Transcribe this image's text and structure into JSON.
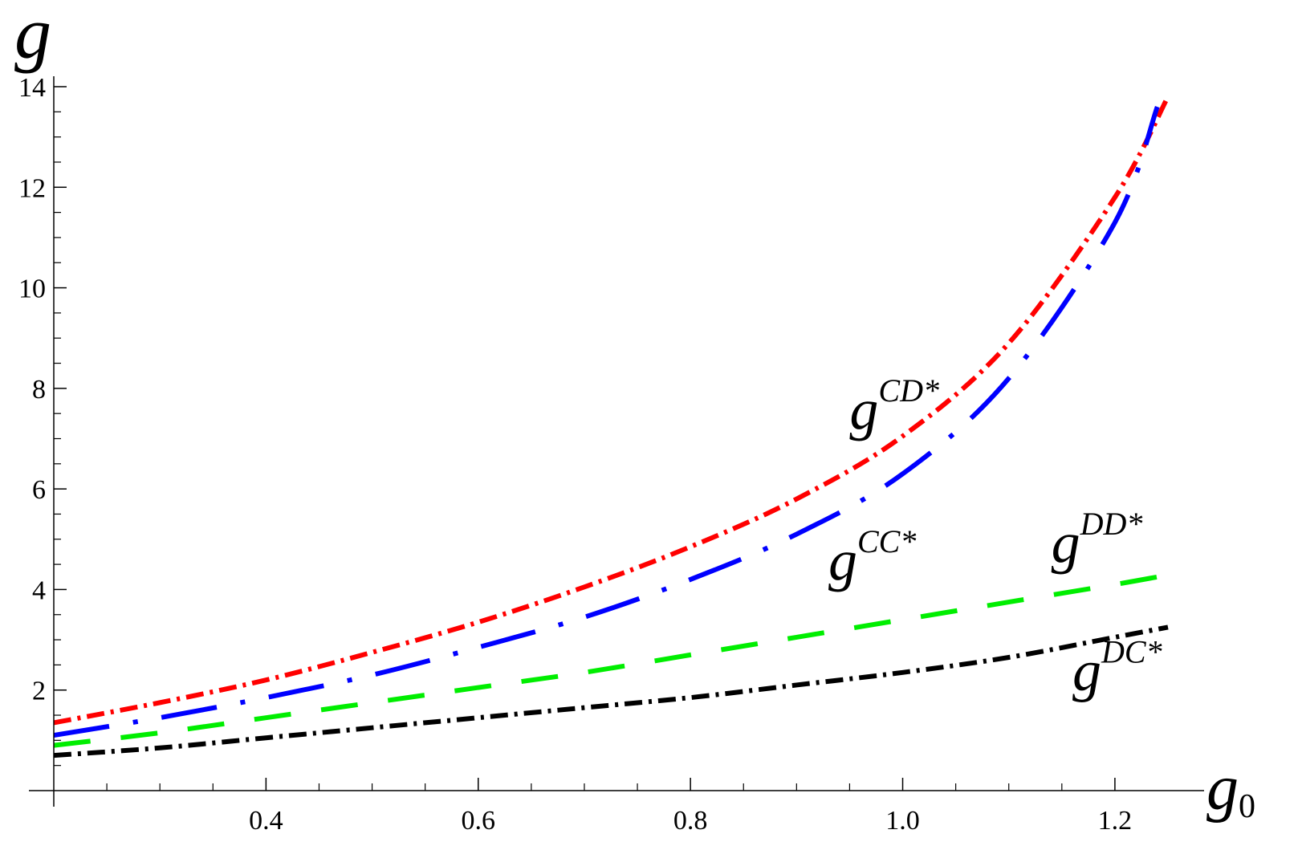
{
  "chart_data": {
    "type": "line",
    "xlabel": "g",
    "xlabel_sub": "0",
    "ylabel": "g",
    "xlim": [
      0.2,
      1.25
    ],
    "ylim": [
      0,
      14
    ],
    "x_ticks": [
      {
        "value": 0.4,
        "label": "0.4"
      },
      {
        "value": 0.6,
        "label": "0.6"
      },
      {
        "value": 0.8,
        "label": "0.8"
      },
      {
        "value": 1.0,
        "label": "1.0"
      },
      {
        "value": 1.2,
        "label": "1.2"
      }
    ],
    "y_ticks": [
      {
        "value": 2,
        "label": "2"
      },
      {
        "value": 4,
        "label": "4"
      },
      {
        "value": 6,
        "label": "6"
      },
      {
        "value": 8,
        "label": "8"
      },
      {
        "value": 10,
        "label": "10"
      },
      {
        "value": 12,
        "label": "12"
      },
      {
        "value": 14,
        "label": "14"
      }
    ],
    "grid": false,
    "series": [
      {
        "name": "g",
        "sup": "CD*",
        "color": "#ff0000",
        "style": "dashdot",
        "label_at": [
          0.95,
          7.2
        ],
        "x": [
          0.2,
          0.3,
          0.4,
          0.5,
          0.6,
          0.7,
          0.8,
          0.9,
          1.0,
          1.1,
          1.2,
          1.25
        ],
        "y": [
          1.35,
          1.75,
          2.2,
          2.75,
          3.35,
          4.05,
          4.85,
          5.8,
          7.05,
          8.9,
          11.8,
          13.8
        ]
      },
      {
        "name": "g",
        "sup": "CC*",
        "color": "#0000ff",
        "style": "longdashdot",
        "label_at": [
          0.93,
          4.2
        ],
        "x": [
          0.2,
          0.3,
          0.4,
          0.5,
          0.6,
          0.7,
          0.8,
          0.9,
          1.0,
          1.1,
          1.2,
          1.24
        ],
        "y": [
          1.1,
          1.45,
          1.85,
          2.3,
          2.85,
          3.45,
          4.2,
          5.1,
          6.3,
          8.2,
          11.3,
          13.6
        ]
      },
      {
        "name": "g",
        "sup": "DD*",
        "color": "#00ee00",
        "style": "dash",
        "label_at": [
          1.14,
          4.55
        ],
        "x": [
          0.2,
          0.3,
          0.4,
          0.5,
          0.6,
          0.7,
          0.8,
          0.9,
          1.0,
          1.1,
          1.2,
          1.24
        ],
        "y": [
          0.9,
          1.15,
          1.45,
          1.75,
          2.05,
          2.35,
          2.7,
          3.05,
          3.4,
          3.75,
          4.1,
          4.25
        ]
      },
      {
        "name": "g",
        "sup": "DC*",
        "color": "#000000",
        "style": "dashdot",
        "label_at": [
          1.16,
          2.0
        ],
        "x": [
          0.2,
          0.3,
          0.4,
          0.5,
          0.6,
          0.7,
          0.8,
          0.9,
          1.0,
          1.1,
          1.2,
          1.25
        ],
        "y": [
          0.7,
          0.85,
          1.05,
          1.25,
          1.45,
          1.65,
          1.85,
          2.1,
          2.35,
          2.65,
          3.05,
          3.25
        ]
      }
    ]
  }
}
